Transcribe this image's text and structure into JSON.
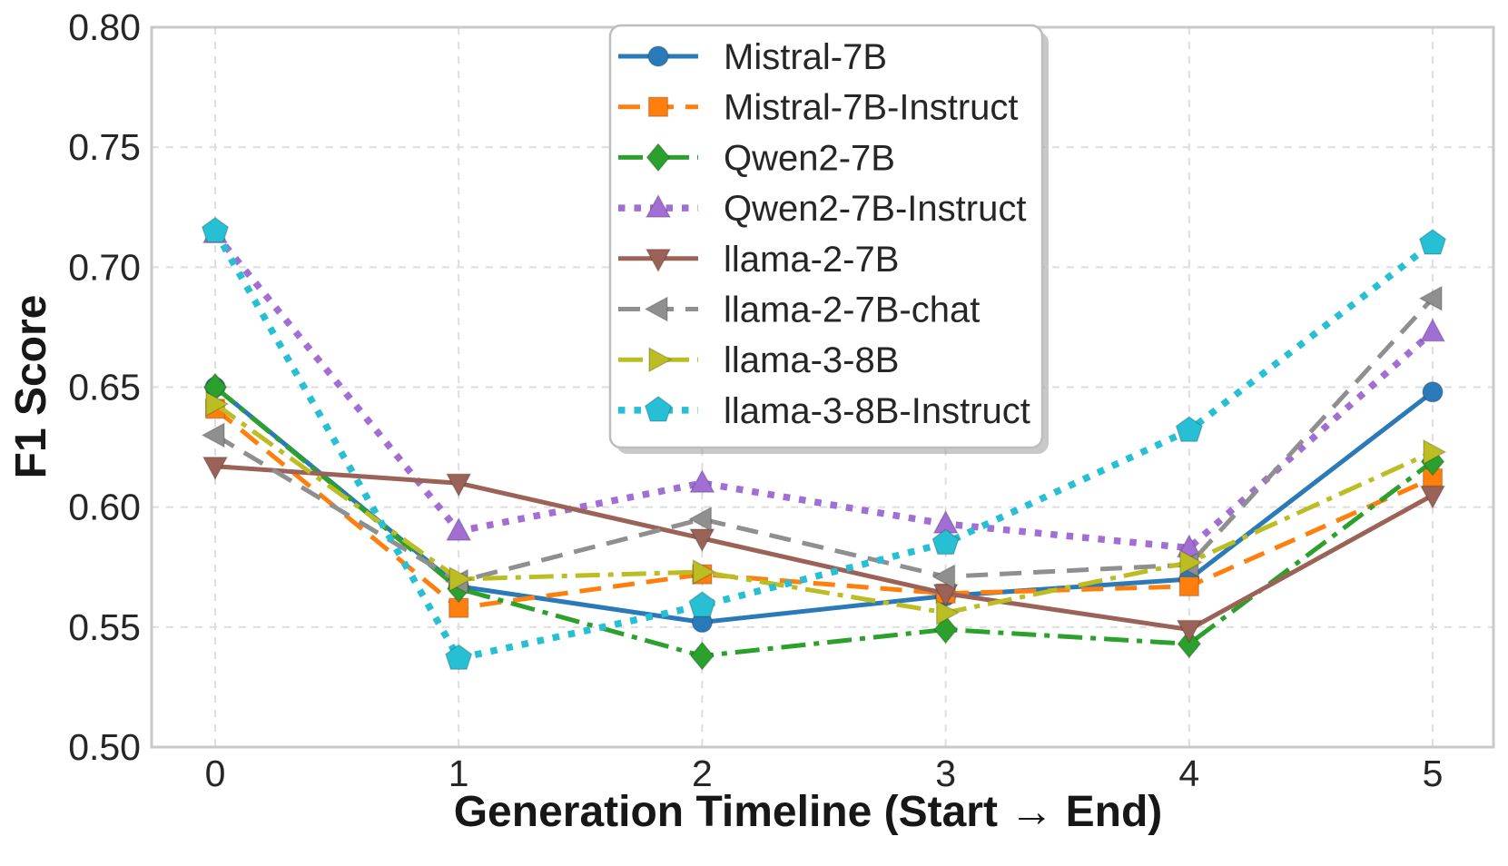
{
  "chart_data": {
    "type": "line",
    "title": "",
    "xlabel": "Generation Timeline (Start → End)",
    "ylabel": "F1 Score",
    "x": [
      0,
      1,
      2,
      3,
      4,
      5
    ],
    "xtick_labels": [
      "0",
      "1",
      "2",
      "3",
      "4",
      "5"
    ],
    "ytick_values": [
      0.5,
      0.55,
      0.6,
      0.65,
      0.7,
      0.75,
      0.8
    ],
    "ytick_labels": [
      "0.50",
      "0.55",
      "0.60",
      "0.65",
      "0.70",
      "0.75",
      "0.80"
    ],
    "ylim": [
      0.5,
      0.8
    ],
    "xlim_padding": 0.26,
    "grid": true,
    "legend_position": "upper center",
    "series": [
      {
        "name": "Mistral-7B",
        "color": "#2a7ab9",
        "linestyle": "solid",
        "marker": "circle",
        "values": [
          0.65,
          0.567,
          0.552,
          0.563,
          0.57,
          0.648
        ]
      },
      {
        "name": "Mistral-7B-Instruct",
        "color": "#ff7f0e",
        "linestyle": "dashed",
        "marker": "square",
        "values": [
          0.641,
          0.558,
          0.572,
          0.564,
          0.567,
          0.612
        ]
      },
      {
        "name": "Qwen2-7B",
        "color": "#2ca02c",
        "linestyle": "dashdot",
        "marker": "diamond",
        "values": [
          0.65,
          0.566,
          0.538,
          0.549,
          0.543,
          0.619
        ]
      },
      {
        "name": "Qwen2-7B-Instruct",
        "color": "#a16fd3",
        "linestyle": "dotted",
        "marker": "triangle-up",
        "values": [
          0.714,
          0.59,
          0.61,
          0.593,
          0.583,
          0.673
        ]
      },
      {
        "name": "llama-2-7B",
        "color": "#9b6357",
        "linestyle": "solid",
        "marker": "triangle-down",
        "values": [
          0.617,
          0.61,
          0.587,
          0.564,
          0.549,
          0.605
        ]
      },
      {
        "name": "llama-2-7B-chat",
        "color": "#8f8f8f",
        "linestyle": "dashed",
        "marker": "triangle-left",
        "values": [
          0.63,
          0.569,
          0.595,
          0.571,
          0.576,
          0.687
        ]
      },
      {
        "name": "llama-3-8B",
        "color": "#bcbd22",
        "linestyle": "dashdot",
        "marker": "triangle-right",
        "values": [
          0.643,
          0.57,
          0.573,
          0.556,
          0.577,
          0.623
        ]
      },
      {
        "name": "llama-3-8B-Instruct",
        "color": "#27bfd3",
        "linestyle": "dotted",
        "marker": "pentagon",
        "values": [
          0.715,
          0.537,
          0.559,
          0.585,
          0.632,
          0.71
        ]
      }
    ],
    "style": {
      "background_color": "#ffffff",
      "spine_color": "#c9c9c9",
      "grid_color": "#dedede",
      "text_color": "#262626",
      "legend_background": "#ffffff",
      "legend_border_color": "#bdbdbd"
    }
  }
}
